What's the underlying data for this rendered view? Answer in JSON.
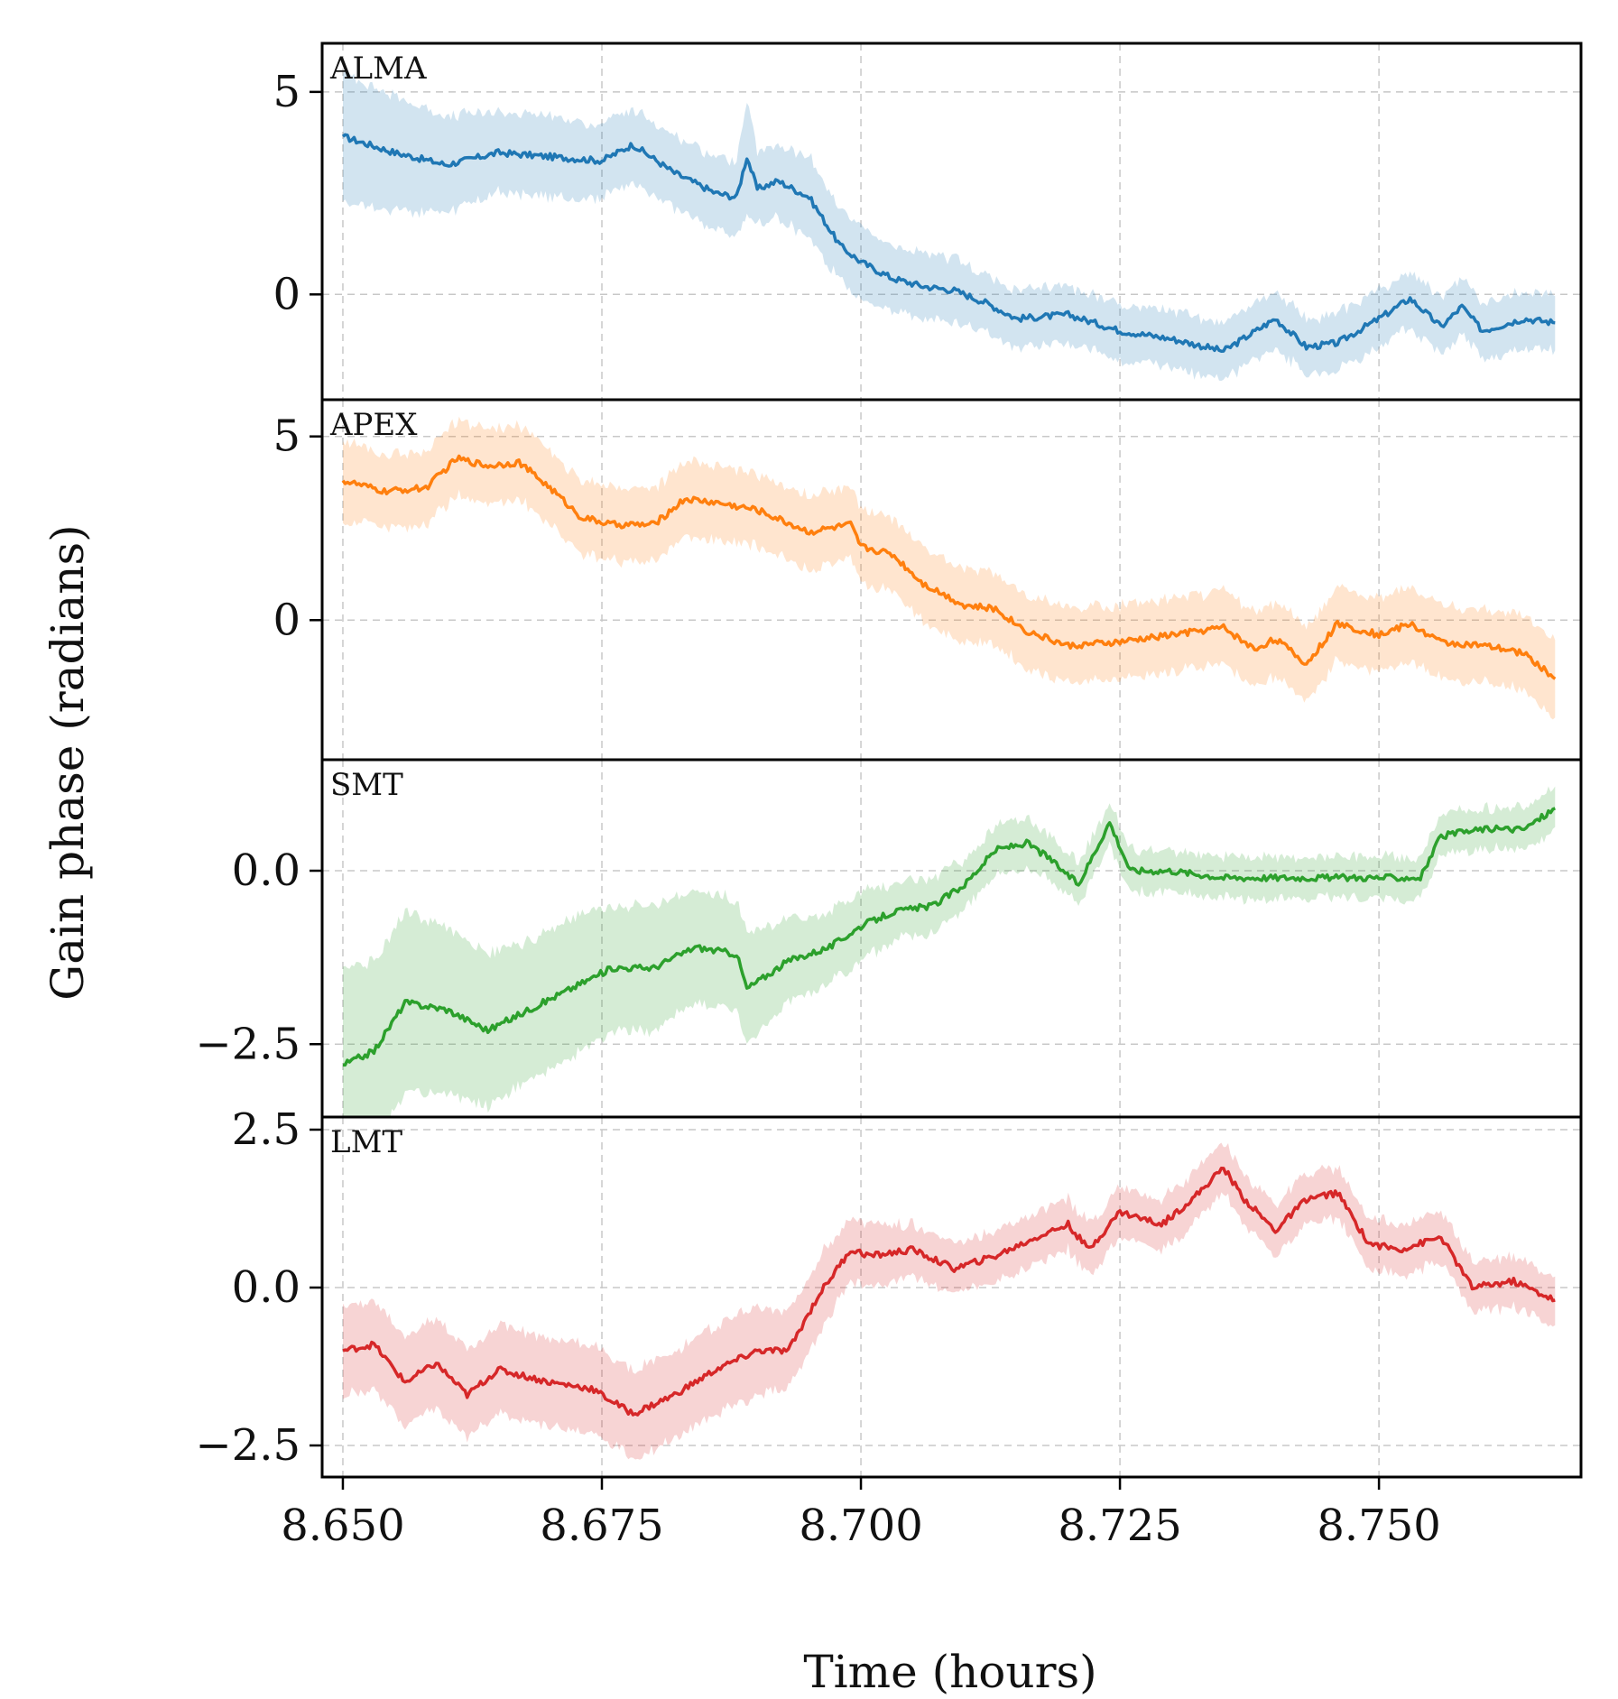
{
  "chart_data": {
    "type": "line",
    "xlabel": "Time (hours)",
    "ylabel": "Gain phase (radians)",
    "xlim": [
      8.648,
      8.7695
    ],
    "xticks": [
      8.65,
      8.675,
      8.7,
      8.725,
      8.75
    ],
    "xtick_labels": [
      "8.650",
      "8.675",
      "8.700",
      "8.725",
      "8.750"
    ],
    "grid": true,
    "panels": [
      {
        "label": "ALMA",
        "color": "#1f77b4",
        "band_color": "#1f77b4",
        "ylim": [
          -2.6,
          6.2
        ],
        "yticks": [
          0,
          5
        ],
        "ytick_labels": [
          "0",
          "5"
        ],
        "x": [
          8.65,
          8.655,
          8.66,
          8.665,
          8.67,
          8.675,
          8.678,
          8.682,
          8.686,
          8.688,
          8.689,
          8.69,
          8.692,
          8.695,
          8.698,
          8.7,
          8.703,
          8.706,
          8.709,
          8.712,
          8.715,
          8.72,
          8.725,
          8.73,
          8.735,
          8.74,
          8.743,
          8.746,
          8.75,
          8.753,
          8.756,
          8.758,
          8.76,
          8.764,
          8.767
        ],
        "values": [
          3.9,
          3.5,
          3.2,
          3.5,
          3.4,
          3.3,
          3.7,
          3.0,
          2.5,
          2.4,
          3.4,
          2.6,
          2.8,
          2.4,
          1.2,
          0.8,
          0.4,
          0.2,
          0.1,
          -0.2,
          -0.6,
          -0.5,
          -0.9,
          -1.1,
          -1.4,
          -0.6,
          -1.3,
          -1.2,
          -0.6,
          -0.1,
          -0.8,
          -0.3,
          -0.9,
          -0.6,
          -0.7
        ],
        "band_halfwidth": [
          1.6,
          1.4,
          1.2,
          1.0,
          1.0,
          0.9,
          0.9,
          0.9,
          0.9,
          0.9,
          1.4,
          0.9,
          0.9,
          1.0,
          0.9,
          0.9,
          0.8,
          0.8,
          0.8,
          0.7,
          0.7,
          0.7,
          0.7,
          0.7,
          0.7,
          0.7,
          0.7,
          0.7,
          0.7,
          0.7,
          0.7,
          0.7,
          0.7,
          0.7,
          0.7
        ]
      },
      {
        "label": "APEX",
        "color": "#ff7f0e",
        "band_color": "#ff7f0e",
        "ylim": [
          -3.8,
          6.0
        ],
        "yticks": [
          0,
          5
        ],
        "ytick_labels": [
          "0",
          "5"
        ],
        "x": [
          8.65,
          8.654,
          8.658,
          8.661,
          8.664,
          8.667,
          8.67,
          8.673,
          8.676,
          8.68,
          8.683,
          8.686,
          8.69,
          8.695,
          8.699,
          8.7,
          8.703,
          8.706,
          8.71,
          8.713,
          8.716,
          8.72,
          8.725,
          8.73,
          8.735,
          8.738,
          8.74,
          8.743,
          8.746,
          8.75,
          8.753,
          8.756,
          8.76,
          8.764,
          8.767
        ],
        "values": [
          3.8,
          3.5,
          3.6,
          4.4,
          4.2,
          4.3,
          3.6,
          2.8,
          2.6,
          2.6,
          3.3,
          3.2,
          3.0,
          2.4,
          2.6,
          2.0,
          1.8,
          1.0,
          0.4,
          0.3,
          -0.3,
          -0.7,
          -0.6,
          -0.4,
          -0.2,
          -0.8,
          -0.5,
          -1.2,
          -0.1,
          -0.4,
          -0.1,
          -0.6,
          -0.7,
          -0.9,
          -1.6
        ],
        "band_halfwidth": [
          1.1,
          1.0,
          1.0,
          1.0,
          1.0,
          1.0,
          1.0,
          1.0,
          1.0,
          1.0,
          1.0,
          1.0,
          1.0,
          1.0,
          1.0,
          1.0,
          1.0,
          1.0,
          1.0,
          1.0,
          1.0,
          1.0,
          1.0,
          1.0,
          1.0,
          1.0,
          1.0,
          1.0,
          1.0,
          1.0,
          1.0,
          1.0,
          1.0,
          1.0,
          1.1
        ]
      },
      {
        "label": "SMT",
        "color": "#2ca02c",
        "band_color": "#2ca02c",
        "ylim": [
          -3.55,
          1.6
        ],
        "yticks": [
          -2.5,
          0.0
        ],
        "ytick_labels": [
          "−2.5",
          "0.0"
        ],
        "x": [
          8.65,
          8.653,
          8.656,
          8.66,
          8.664,
          8.668,
          8.672,
          8.676,
          8.68,
          8.684,
          8.688,
          8.689,
          8.693,
          8.697,
          8.7,
          8.703,
          8.707,
          8.71,
          8.713,
          8.716,
          8.718,
          8.721,
          8.723,
          8.724,
          8.726,
          8.73,
          8.735,
          8.74,
          8.745,
          8.75,
          8.754,
          8.756,
          8.76,
          8.764,
          8.767
        ],
        "values": [
          -2.8,
          -2.6,
          -1.9,
          -2.0,
          -2.3,
          -2.0,
          -1.7,
          -1.4,
          -1.4,
          -1.1,
          -1.2,
          -1.7,
          -1.3,
          -1.1,
          -0.8,
          -0.6,
          -0.5,
          -0.2,
          0.3,
          0.4,
          0.2,
          -0.2,
          0.4,
          0.7,
          0.0,
          0.0,
          -0.1,
          -0.1,
          -0.1,
          -0.1,
          -0.1,
          0.5,
          0.6,
          0.6,
          0.9
        ],
        "band_halfwidth": [
          1.4,
          1.3,
          1.3,
          1.2,
          1.1,
          1.0,
          1.0,
          0.9,
          0.9,
          0.8,
          0.8,
          0.8,
          0.6,
          0.5,
          0.5,
          0.4,
          0.4,
          0.35,
          0.35,
          0.35,
          0.3,
          0.3,
          0.3,
          0.3,
          0.3,
          0.3,
          0.3,
          0.3,
          0.3,
          0.3,
          0.3,
          0.3,
          0.3,
          0.3,
          0.3
        ]
      },
      {
        "label": "LMT",
        "color": "#d62728",
        "band_color": "#d62728",
        "ylim": [
          -3.0,
          2.7
        ],
        "yticks": [
          -2.5,
          0.0,
          2.5
        ],
        "ytick_labels": [
          "−2.5",
          "0.0",
          "2.5"
        ],
        "x": [
          8.65,
          8.653,
          8.656,
          8.659,
          8.662,
          8.665,
          8.67,
          8.674,
          8.678,
          8.682,
          8.686,
          8.69,
          8.693,
          8.696,
          8.699,
          8.701,
          8.705,
          8.709,
          8.713,
          8.717,
          8.72,
          8.722,
          8.725,
          8.729,
          8.732,
          8.735,
          8.737,
          8.74,
          8.743,
          8.746,
          8.749,
          8.752,
          8.756,
          8.759,
          8.763,
          8.767
        ],
        "values": [
          -1.0,
          -0.9,
          -1.5,
          -1.2,
          -1.7,
          -1.3,
          -1.5,
          -1.6,
          -2.0,
          -1.7,
          -1.3,
          -1.0,
          -1.0,
          -0.1,
          0.6,
          0.5,
          0.6,
          0.3,
          0.5,
          0.8,
          1.0,
          0.6,
          1.2,
          1.0,
          1.4,
          1.9,
          1.4,
          0.9,
          1.4,
          1.5,
          0.7,
          0.6,
          0.8,
          0.0,
          0.1,
          -0.2
        ],
        "band_halfwidth": [
          0.7,
          0.7,
          0.7,
          0.7,
          0.7,
          0.7,
          0.7,
          0.7,
          0.7,
          0.7,
          0.7,
          0.7,
          0.6,
          0.6,
          0.5,
          0.5,
          0.4,
          0.4,
          0.4,
          0.4,
          0.4,
          0.4,
          0.4,
          0.4,
          0.4,
          0.4,
          0.4,
          0.4,
          0.4,
          0.4,
          0.4,
          0.4,
          0.4,
          0.4,
          0.4,
          0.4
        ]
      }
    ]
  }
}
